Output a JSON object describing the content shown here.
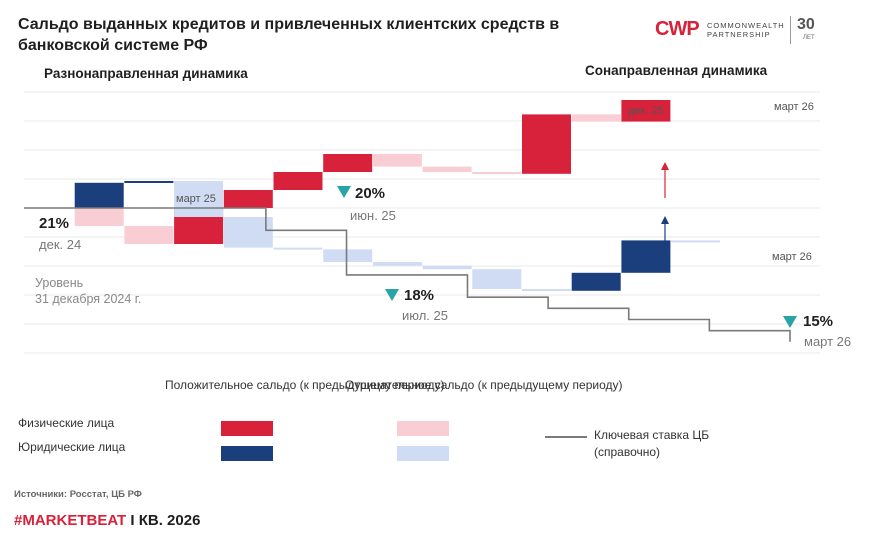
{
  "header": {
    "title": "Сальдо выданных кредитов и привлеченных клиентских средств в банковской системе РФ",
    "logo_mark": "CWP",
    "logo_name": "COMMONWEALTH PARTNERSHIP",
    "logo_years": "30",
    "logo_years_sub": "ЛЕТ"
  },
  "sections": {
    "left": "Разнонаправленная динамика",
    "right": "Сонаправленная динамика"
  },
  "colors": {
    "pos_phys": "#d8213a",
    "neg_phys": "#f8cdd3",
    "pos_jur": "#1b3f7c",
    "neg_jur": "#cfdcf3",
    "key_rate": "#7a7a7a",
    "marker": "#28a3a6"
  },
  "chart_data": {
    "type": "waterfall",
    "series": [
      {
        "name": "Физические лица",
        "segments": [
          {
            "from": 0,
            "to": -1,
            "sign": "negative"
          },
          {
            "from": -1,
            "to": -2,
            "sign": "negative"
          },
          {
            "from": -2,
            "to": 0,
            "sign": "positive"
          },
          {
            "from": 0,
            "to": 1,
            "sign": "positive"
          },
          {
            "from": 1,
            "to": 2,
            "sign": "positive"
          },
          {
            "from": 2,
            "to": 3,
            "sign": "positive"
          },
          {
            "from": 3,
            "to": 2.3,
            "sign": "negative"
          },
          {
            "from": 2.3,
            "to": 2.0,
            "sign": "negative"
          },
          {
            "from": 2.0,
            "to": 1.9,
            "sign": "negative"
          },
          {
            "from": 1.9,
            "to": 5.2,
            "sign": "positive"
          },
          {
            "from": 5.2,
            "to": 4.8,
            "sign": "negative"
          },
          {
            "from": 4.8,
            "to": 6.0,
            "sign": "positive"
          }
        ]
      },
      {
        "name": "Юридические лица",
        "segments": [
          {
            "from": 0,
            "to": 1.4,
            "sign": "positive"
          },
          {
            "from": 1.4,
            "to": 1.5,
            "sign": "positive"
          },
          {
            "from": 1.5,
            "to": -0.5,
            "sign": "negative"
          },
          {
            "from": -0.5,
            "to": -2.2,
            "sign": "negative"
          },
          {
            "from": -2.2,
            "to": -2.3,
            "sign": "negative"
          },
          {
            "from": -2.3,
            "to": -3.0,
            "sign": "negative"
          },
          {
            "from": -3.0,
            "to": -3.2,
            "sign": "negative"
          },
          {
            "from": -3.2,
            "to": -3.4,
            "sign": "negative"
          },
          {
            "from": -3.4,
            "to": -4.5,
            "sign": "negative"
          },
          {
            "from": -4.5,
            "to": -4.6,
            "sign": "negative"
          },
          {
            "from": -4.6,
            "to": -3.6,
            "sign": "positive"
          },
          {
            "from": -3.6,
            "to": -1.8,
            "sign": "positive"
          },
          {
            "from": -1.8,
            "to": -1.9,
            "sign": "negative"
          }
        ]
      }
    ],
    "key_rate": {
      "name": "Ключевая ставка ЦБ (справочно)",
      "values": [
        21,
        21,
        21,
        21,
        21,
        21,
        20,
        20,
        18,
        18,
        18,
        17,
        17,
        16.5,
        16.5,
        16,
        16,
        15.5,
        15.5,
        15
      ]
    },
    "annotations": {
      "series_labels": [
        "март 25",
        "дек. 25",
        "март 26",
        "март 26"
      ],
      "rate_marks": [
        {
          "value": "21%",
          "date": "дек. 24"
        },
        {
          "value": "20%",
          "date": "июн. 25"
        },
        {
          "value": "18%",
          "date": "июл. 25"
        },
        {
          "value": "15%",
          "date": "март 26"
        }
      ],
      "level_label": "Уровень 31 декабря 2024 г."
    }
  },
  "legend": {
    "positive_header": "Положительное сальдо (к предыдущему периоду)",
    "negative_header": "Отрицательное сальдо (к предыдущему периоду)",
    "phys_label": "Физические лица",
    "jur_label": "Юридические лица",
    "key_rate_label": "Ключевая ставка ЦБ (справочно)"
  },
  "source": "Источники: Росстат, ЦБ РФ",
  "footer": {
    "tag": "#MARKETBEAT",
    "rest": " I КВ. 2026"
  }
}
